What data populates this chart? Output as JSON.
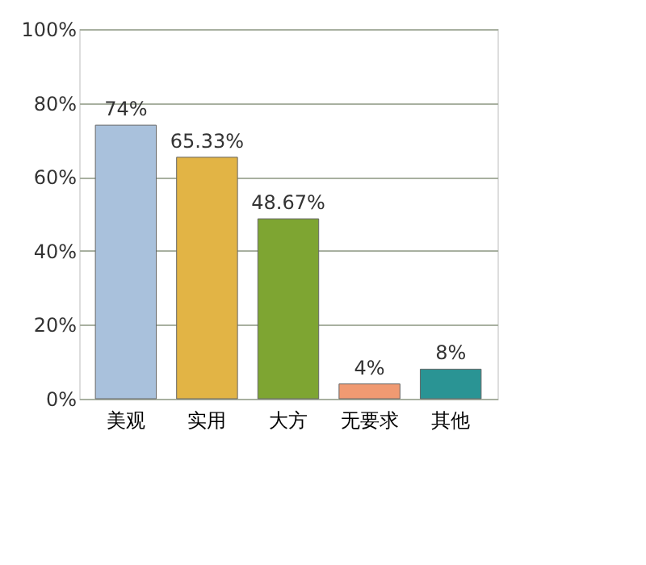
{
  "chart_data": {
    "type": "bar",
    "categories": [
      "美观",
      "实用",
      "大方",
      "无要求",
      "其他"
    ],
    "values": [
      74,
      65.33,
      48.67,
      4,
      8
    ],
    "colors": [
      "#a9c1dc",
      "#e2b445",
      "#7ea532",
      "#f09a72",
      "#2a9494"
    ],
    "value_labels": [
      "74%",
      "65.33%",
      "48.67%",
      "4%",
      "8%"
    ],
    "ylim": [
      0,
      100
    ],
    "yticks": [
      {
        "value": 0,
        "label": "0%"
      },
      {
        "value": 20,
        "label": "20%"
      },
      {
        "value": 40,
        "label": "40%"
      },
      {
        "value": 60,
        "label": "60%"
      },
      {
        "value": 80,
        "label": "80%"
      },
      {
        "value": 100,
        "label": "100%"
      }
    ],
    "grid": "y"
  }
}
